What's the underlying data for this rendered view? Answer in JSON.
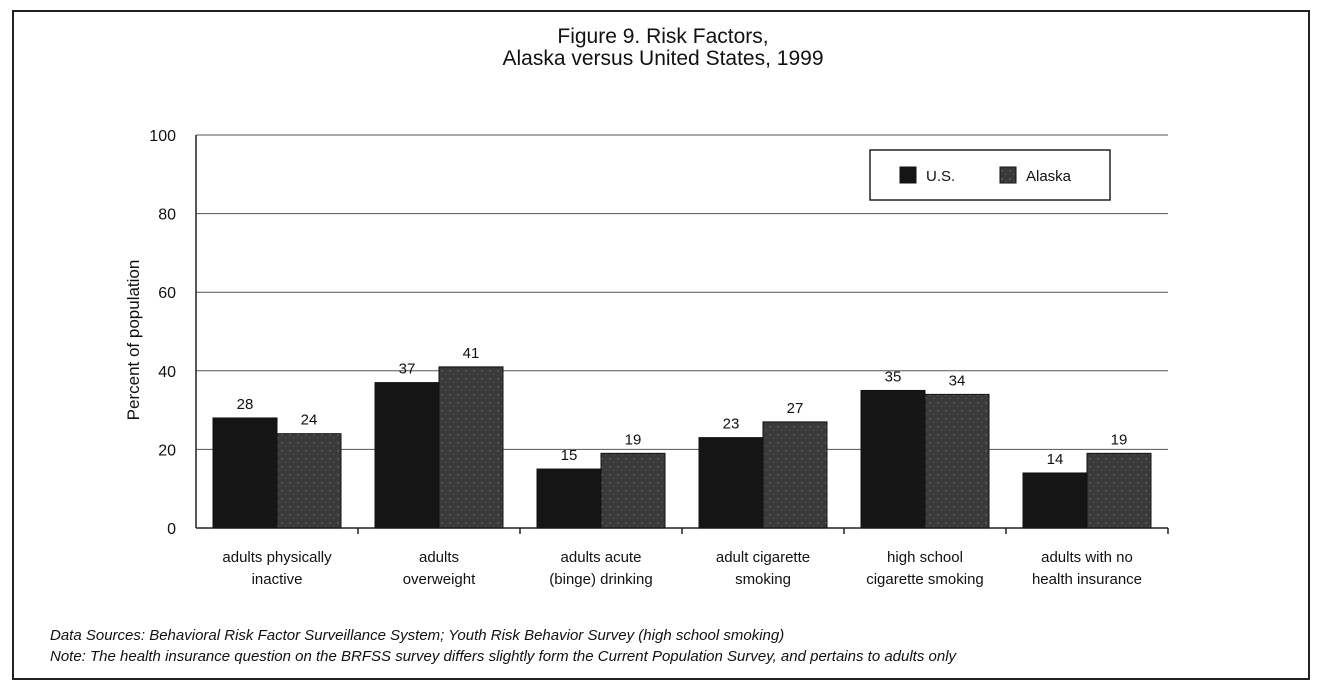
{
  "chart_data": {
    "type": "bar",
    "title": "Figure 9. Risk Factors,",
    "subtitle": "Alaska versus United States, 1999",
    "ylabel": "Percent of population",
    "xlabel": "",
    "ylim": [
      0,
      100
    ],
    "yticks": [
      "0",
      "20",
      "40",
      "60",
      "80",
      "100"
    ],
    "grid": true,
    "legend_position": "top-right",
    "categories": [
      [
        "adults physically",
        "inactive"
      ],
      [
        "adults",
        "overweight"
      ],
      [
        "adults acute",
        "(binge) drinking"
      ],
      [
        "adult cigarette",
        "smoking"
      ],
      [
        "high school",
        "cigarette smoking"
      ],
      [
        "adults with no",
        "health insurance"
      ]
    ],
    "series": [
      {
        "name": "U.S.",
        "values": [
          28,
          37,
          15,
          23,
          35,
          14
        ],
        "color": "#151515"
      },
      {
        "name": "Alaska",
        "values": [
          24,
          41,
          19,
          27,
          34,
          19
        ],
        "color": "#3a3a3a"
      }
    ]
  },
  "notes": {
    "sources": "Data Sources: Behavioral Risk Factor Surveillance System; Youth Risk Behavior Survey (high school smoking)",
    "note": "Note: The health insurance question on the BRFSS survey differs  slightly form the Current Population Survey, and pertains to adults only"
  }
}
